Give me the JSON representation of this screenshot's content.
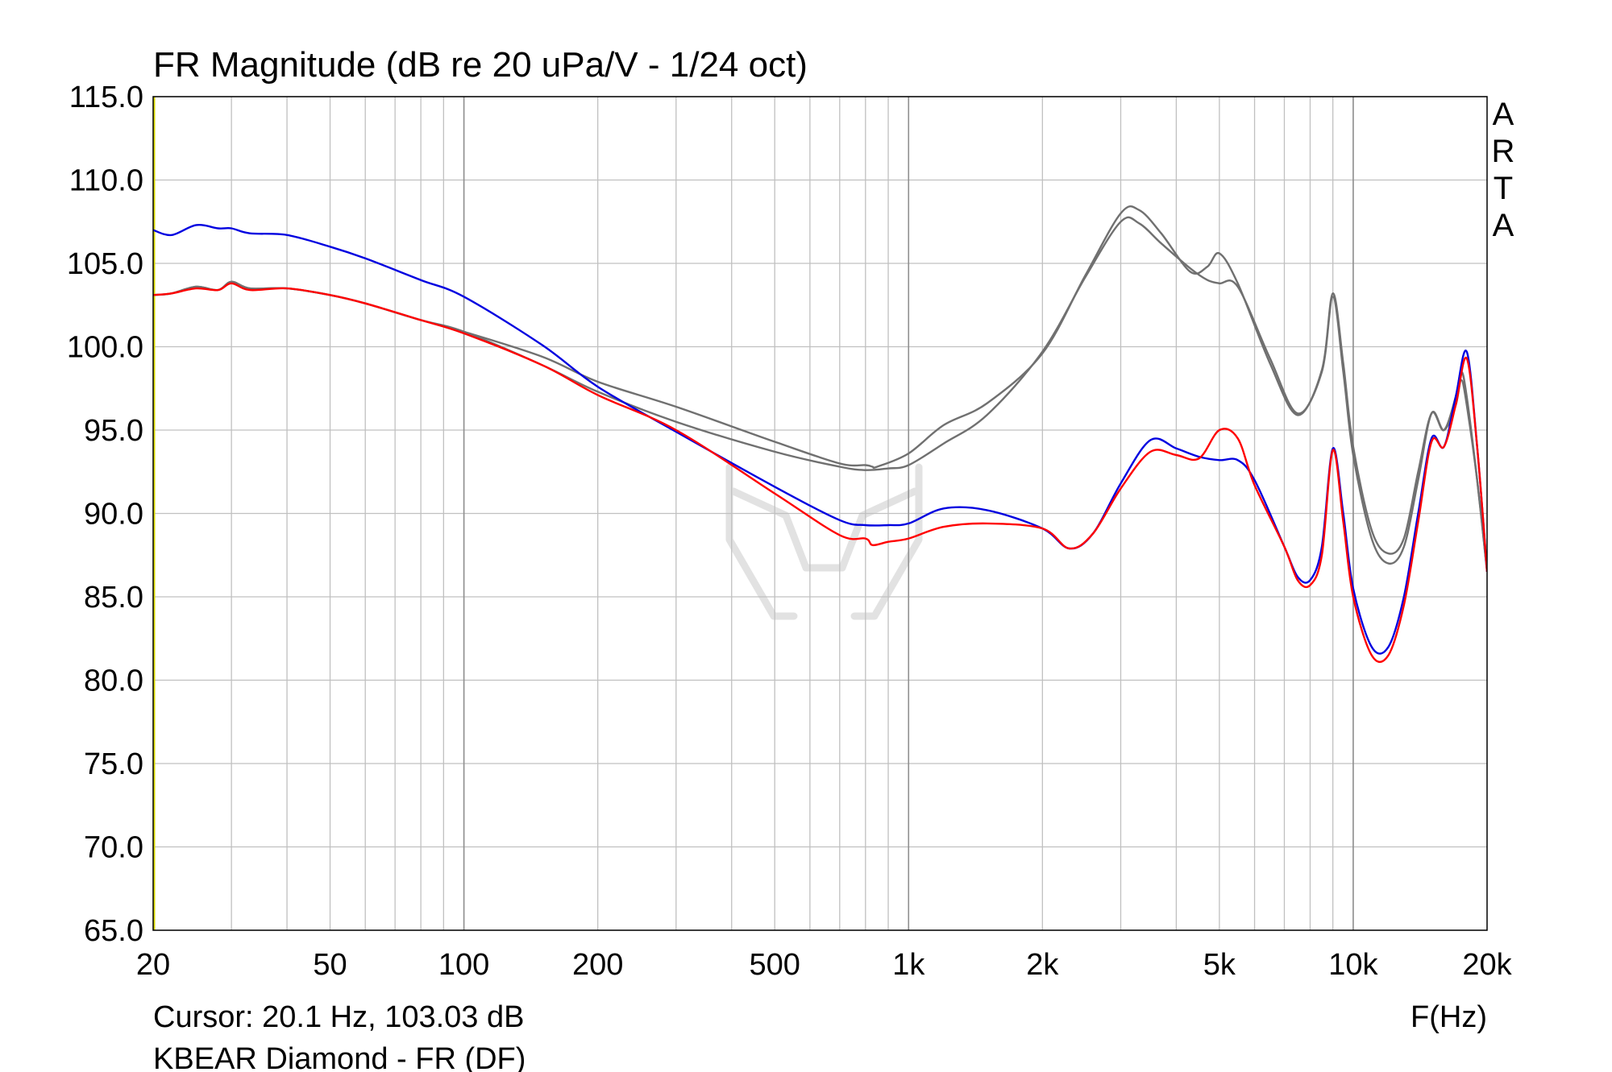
{
  "chart_data": {
    "type": "line",
    "title": "FR Magnitude (dB re 20 uPa/V - 1/24 oct)",
    "xlabel": "F(Hz)",
    "ylabel": "",
    "x_scale": "log",
    "xlim": [
      20,
      20000
    ],
    "ylim": [
      65,
      115
    ],
    "grid": true,
    "y_ticks": [
      "115.0",
      "110.0",
      "105.0",
      "100.0",
      "95.0",
      "90.0",
      "85.0",
      "80.0",
      "75.0",
      "70.0",
      "65.0"
    ],
    "y_tick_values": [
      115,
      110,
      105,
      100,
      95,
      90,
      85,
      80,
      75,
      70,
      65
    ],
    "x_ticks": [
      "20",
      "50",
      "100",
      "200",
      "500",
      "1k",
      "2k",
      "5k",
      "10k",
      "20k"
    ],
    "x_tick_values": [
      20,
      50,
      100,
      200,
      500,
      1000,
      2000,
      5000,
      10000,
      20000
    ],
    "side_label": "ARTA",
    "cursor_text": "Cursor: 20.1 Hz, 103.03 dB",
    "footer_text": "KBEAR Diamond - FR (DF)",
    "colors": {
      "blue": "#0000e0",
      "red": "#ff0000",
      "gray": "#707070",
      "grid": "#c0c0c0"
    },
    "series": [
      {
        "color": "#707070",
        "x": [
          20,
          22,
          25,
          28,
          30,
          33,
          40,
          50,
          60,
          80,
          100,
          150,
          200,
          300,
          500,
          700,
          800,
          900,
          1000,
          1200,
          1500,
          2000,
          2500,
          3000,
          3300,
          3700,
          4300,
          4700,
          5000,
          5500,
          6500,
          7500,
          8500,
          9000,
          9500,
          10000,
          11000,
          12000,
          13000,
          14000,
          15000,
          16000,
          17000,
          17500,
          18000,
          19000,
          20000
        ],
        "y": [
          103.1,
          103.2,
          103.6,
          103.4,
          103.9,
          103.5,
          103.5,
          103.1,
          102.6,
          101.6,
          100.9,
          98.9,
          97.3,
          95.5,
          93.7,
          92.8,
          92.6,
          92.7,
          92.9,
          94.2,
          95.9,
          99.7,
          104.2,
          107.5,
          107.4,
          106.2,
          104.7,
          104.0,
          103.8,
          103.6,
          99.3,
          96.0,
          98.5,
          103.0,
          98.5,
          93.5,
          88.5,
          87.0,
          88.0,
          92.0,
          96.0,
          95.0,
          96.5,
          98.0,
          96.5,
          92.0,
          86.5
        ]
      },
      {
        "color": "#707070",
        "x": [
          20,
          22,
          25,
          28,
          30,
          33,
          40,
          50,
          60,
          80,
          100,
          150,
          200,
          300,
          500,
          700,
          800,
          830,
          850,
          1000,
          1200,
          1500,
          2000,
          2500,
          3000,
          3300,
          3700,
          4300,
          4700,
          5000,
          5500,
          6500,
          7500,
          8500,
          9000,
          9500,
          10000,
          11000,
          12000,
          13000,
          14000,
          15000,
          16000,
          17000,
          17500,
          18000,
          19000,
          20000
        ],
        "y": [
          103.1,
          103.2,
          103.6,
          103.4,
          103.9,
          103.5,
          103.5,
          103.1,
          102.6,
          101.6,
          100.9,
          99.4,
          97.9,
          96.4,
          94.3,
          93.0,
          92.9,
          92.8,
          92.8,
          93.6,
          95.3,
          96.6,
          99.6,
          104.3,
          108.0,
          108.2,
          106.8,
          104.5,
          104.8,
          105.6,
          103.8,
          99.0,
          95.9,
          98.6,
          103.2,
          99.0,
          94.0,
          89.0,
          87.6,
          88.5,
          92.5,
          96.0,
          95.0,
          97.0,
          98.5,
          97.0,
          92.0,
          86.5
        ]
      },
      {
        "color": "#0000e0",
        "x": [
          20,
          22,
          25,
          28,
          30,
          33,
          40,
          50,
          60,
          80,
          100,
          150,
          200,
          300,
          500,
          700,
          800,
          900,
          1000,
          1200,
          1500,
          2000,
          2300,
          2600,
          3000,
          3500,
          4000,
          4500,
          5000,
          5500,
          6000,
          7000,
          7500,
          8000,
          8500,
          9000,
          9500,
          10000,
          11000,
          12000,
          13000,
          14000,
          15000,
          16000,
          17000,
          18000,
          19000,
          20000
        ],
        "y": [
          107.0,
          106.7,
          107.3,
          107.1,
          107.1,
          106.8,
          106.7,
          106.0,
          105.3,
          104.0,
          103.0,
          100.1,
          97.6,
          94.9,
          91.6,
          89.6,
          89.3,
          89.3,
          89.4,
          90.3,
          90.2,
          89.1,
          87.9,
          88.8,
          91.8,
          94.4,
          93.9,
          93.4,
          93.2,
          93.2,
          92.0,
          88.0,
          86.2,
          86.0,
          88.0,
          93.9,
          90.0,
          85.5,
          82.0,
          82.0,
          85.0,
          90.0,
          94.5,
          94.0,
          97.0,
          99.7,
          94.0,
          86.5
        ]
      },
      {
        "color": "#ff0000",
        "x": [
          20,
          22,
          25,
          28,
          30,
          33,
          40,
          50,
          60,
          80,
          100,
          150,
          200,
          300,
          500,
          700,
          800,
          830,
          900,
          1000,
          1200,
          1500,
          2000,
          2300,
          2600,
          3000,
          3500,
          4000,
          4500,
          5000,
          5500,
          6000,
          7000,
          7500,
          8000,
          8500,
          9000,
          9500,
          10000,
          11000,
          12000,
          13000,
          14000,
          15000,
          16000,
          17000,
          18000,
          19000,
          20000
        ],
        "y": [
          103.1,
          103.2,
          103.5,
          103.4,
          103.8,
          103.4,
          103.5,
          103.1,
          102.6,
          101.6,
          100.8,
          98.9,
          97.1,
          95.0,
          91.2,
          88.7,
          88.5,
          88.1,
          88.3,
          88.5,
          89.2,
          89.4,
          89.1,
          87.9,
          88.8,
          91.5,
          93.7,
          93.5,
          93.3,
          95.0,
          94.5,
          91.7,
          88.0,
          86.0,
          85.7,
          87.5,
          93.8,
          89.5,
          85.0,
          81.5,
          81.5,
          84.5,
          89.5,
          94.3,
          94.0,
          96.5,
          99.3,
          94.0,
          86.5
        ]
      }
    ]
  }
}
